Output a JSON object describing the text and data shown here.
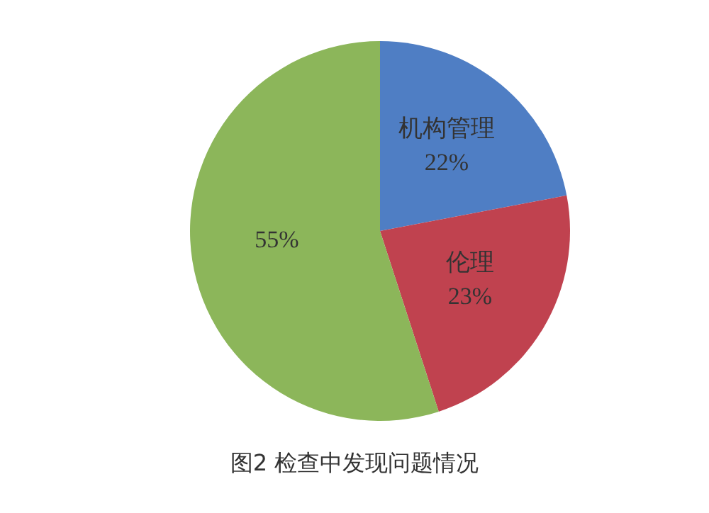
{
  "chart_data": {
    "type": "pie",
    "categories": [
      "机构管理",
      "伦理",
      null
    ],
    "values": [
      22,
      23,
      55
    ],
    "colors": [
      "#4f7ec4",
      "#c0424f",
      "#8cb65a"
    ],
    "value_labels": [
      "22%",
      "23%",
      "55%"
    ],
    "annotations": [
      "图2  检查中发现问题情况"
    ]
  }
}
